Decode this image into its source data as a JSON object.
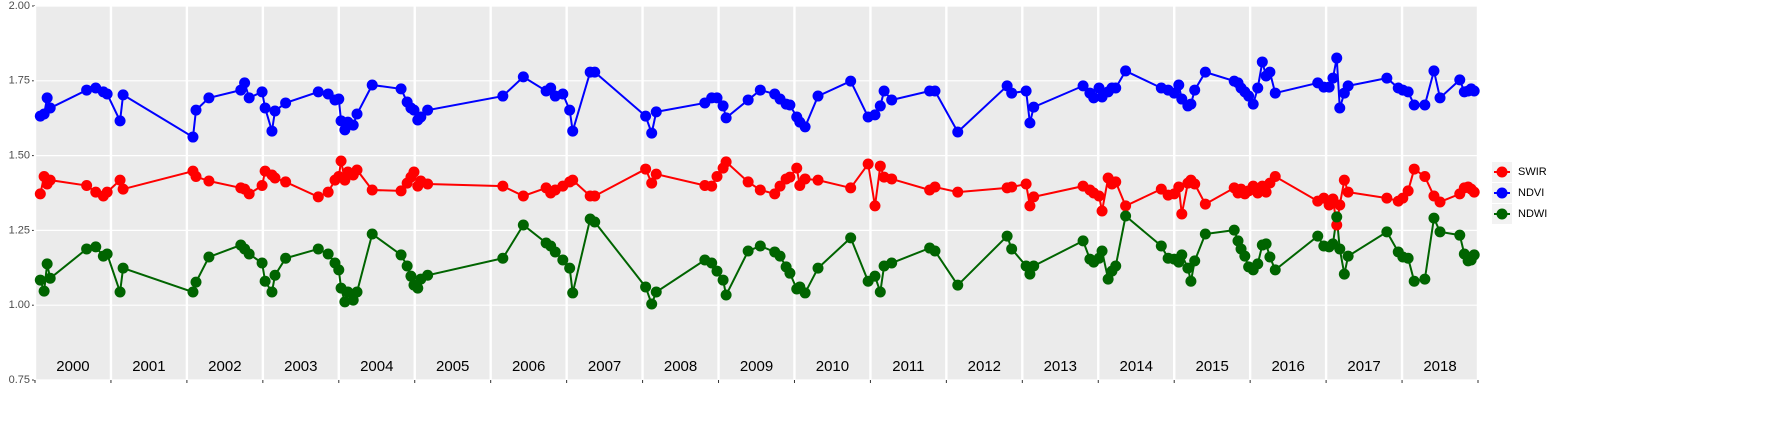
{
  "chart_data": {
    "type": "line",
    "x": [
      2000.07,
      2000.12,
      2000.16,
      2000.2,
      2000.68,
      2000.8,
      2000.9,
      2000.95,
      2001.12,
      2001.16,
      2002.08,
      2002.12,
      2002.29,
      2002.71,
      2002.76,
      2002.82,
      2002.99,
      2003.03,
      2003.12,
      2003.16,
      2003.3,
      2003.73,
      2003.86,
      2003.95,
      2004.0,
      2004.03,
      2004.08,
      2004.12,
      2004.19,
      2004.24,
      2004.44,
      2004.82,
      2004.9,
      2004.95,
      2004.99,
      2005.04,
      2005.08,
      2005.17,
      2006.16,
      2006.43,
      2006.73,
      2006.79,
      2006.85,
      2006.95,
      2007.04,
      2007.08,
      2007.31,
      2007.37,
      2008.04,
      2008.12,
      2008.18,
      2008.82,
      2008.91,
      2008.98,
      2009.06,
      2009.1,
      2009.39,
      2009.55,
      2009.74,
      2009.81,
      2009.89,
      2009.94,
      2010.03,
      2010.07,
      2010.14,
      2010.31,
      2010.74,
      2010.97,
      2011.06,
      2011.13,
      2011.18,
      2011.28,
      2011.78,
      2011.85,
      2012.15,
      2012.8,
      2012.86,
      2013.05,
      2013.1,
      2013.15,
      2013.8,
      2013.89,
      2013.94,
      2014.01,
      2014.05,
      2014.13,
      2014.18,
      2014.23,
      2014.36,
      2014.83,
      2014.92,
      2015.0,
      2015.06,
      2015.1,
      2015.18,
      2015.22,
      2015.27,
      2015.41,
      2015.79,
      2015.84,
      2015.88,
      2015.93,
      2015.98,
      2016.04,
      2016.1,
      2016.16,
      2016.21,
      2016.26,
      2016.33,
      2016.89,
      2016.97,
      2017.04,
      2017.09,
      2017.14,
      2017.18,
      2017.24,
      2017.29,
      2017.8,
      2017.95,
      2018.01,
      2018.08,
      2018.16,
      2018.3,
      2018.42,
      2018.5,
      2018.76,
      2018.82,
      2018.87,
      2018.91,
      2018.95
    ],
    "series": [
      {
        "name": "SWIR",
        "color": "#ff0000",
        "values": [
          1.372,
          1.43,
          1.405,
          1.418,
          1.4,
          1.378,
          1.365,
          1.378,
          1.418,
          1.388,
          1.448,
          1.43,
          1.415,
          1.392,
          1.388,
          1.372,
          1.4,
          1.448,
          1.435,
          1.425,
          1.412,
          1.362,
          1.378,
          1.418,
          1.43,
          1.482,
          1.418,
          1.445,
          1.435,
          1.452,
          1.385,
          1.382,
          1.408,
          1.428,
          1.445,
          1.398,
          1.415,
          1.405,
          1.398,
          1.365,
          1.392,
          1.375,
          1.385,
          1.398,
          1.412,
          1.418,
          1.365,
          1.365,
          1.455,
          1.408,
          1.438,
          1.4,
          1.398,
          1.43,
          1.458,
          1.479,
          1.412,
          1.385,
          1.372,
          1.398,
          1.422,
          1.428,
          1.458,
          1.4,
          1.422,
          1.418,
          1.392,
          1.472,
          1.332,
          1.465,
          1.428,
          1.422,
          1.385,
          1.395,
          1.378,
          1.392,
          1.395,
          1.405,
          1.332,
          1.362,
          1.398,
          1.385,
          1.375,
          1.365,
          1.315,
          1.425,
          1.405,
          1.412,
          1.332,
          1.388,
          1.368,
          1.372,
          1.395,
          1.305,
          1.408,
          1.418,
          1.405,
          1.338,
          1.392,
          1.375,
          1.388,
          1.372,
          1.382,
          1.398,
          1.375,
          1.398,
          1.378,
          1.408,
          1.43,
          1.348,
          1.358,
          1.335,
          1.355,
          1.268,
          1.335,
          1.418,
          1.378,
          1.358,
          1.348,
          1.358,
          1.382,
          1.455,
          1.43,
          1.365,
          1.345,
          1.372,
          1.392,
          1.395,
          1.388,
          1.378
        ]
      },
      {
        "name": "NDVI",
        "color": "#0000ff",
        "values": [
          1.632,
          1.639,
          1.693,
          1.659,
          1.719,
          1.726,
          1.713,
          1.706,
          1.616,
          1.703,
          1.562,
          1.652,
          1.693,
          1.719,
          1.743,
          1.693,
          1.713,
          1.659,
          1.582,
          1.649,
          1.676,
          1.713,
          1.706,
          1.686,
          1.689,
          1.616,
          1.586,
          1.612,
          1.602,
          1.639,
          1.736,
          1.723,
          1.679,
          1.659,
          1.652,
          1.619,
          1.629,
          1.652,
          1.699,
          1.763,
          1.716,
          1.726,
          1.699,
          1.706,
          1.652,
          1.582,
          1.779,
          1.779,
          1.632,
          1.575,
          1.646,
          1.676,
          1.693,
          1.693,
          1.666,
          1.626,
          1.686,
          1.719,
          1.706,
          1.689,
          1.672,
          1.669,
          1.629,
          1.612,
          1.596,
          1.699,
          1.749,
          1.629,
          1.636,
          1.666,
          1.716,
          1.686,
          1.716,
          1.716,
          1.579,
          1.733,
          1.709,
          1.716,
          1.609,
          1.662,
          1.733,
          1.709,
          1.693,
          1.726,
          1.696,
          1.713,
          1.726,
          1.726,
          1.783,
          1.726,
          1.719,
          1.709,
          1.736,
          1.689,
          1.666,
          1.672,
          1.719,
          1.779,
          1.749,
          1.743,
          1.726,
          1.713,
          1.699,
          1.672,
          1.726,
          1.813,
          1.766,
          1.779,
          1.709,
          1.743,
          1.729,
          1.729,
          1.759,
          1.826,
          1.659,
          1.709,
          1.733,
          1.759,
          1.726,
          1.719,
          1.713,
          1.669,
          1.669,
          1.783,
          1.693,
          1.753,
          1.713,
          1.716,
          1.723,
          1.716
        ]
      },
      {
        "name": "NDWI",
        "color": "#006400",
        "values": [
          1.084,
          1.047,
          1.138,
          1.09,
          1.188,
          1.195,
          1.164,
          1.171,
          1.044,
          1.124,
          1.044,
          1.077,
          1.161,
          1.201,
          1.188,
          1.171,
          1.141,
          1.08,
          1.044,
          1.1,
          1.157,
          1.188,
          1.171,
          1.141,
          1.118,
          1.057,
          1.011,
          1.044,
          1.017,
          1.044,
          1.238,
          1.168,
          1.131,
          1.097,
          1.067,
          1.057,
          1.087,
          1.1,
          1.157,
          1.268,
          1.208,
          1.198,
          1.178,
          1.151,
          1.124,
          1.041,
          1.288,
          1.278,
          1.061,
          1.004,
          1.044,
          1.151,
          1.141,
          1.114,
          1.084,
          1.034,
          1.181,
          1.198,
          1.178,
          1.164,
          1.128,
          1.107,
          1.054,
          1.061,
          1.041,
          1.124,
          1.225,
          1.08,
          1.097,
          1.044,
          1.131,
          1.141,
          1.191,
          1.181,
          1.067,
          1.231,
          1.188,
          1.131,
          1.104,
          1.131,
          1.215,
          1.154,
          1.144,
          1.157,
          1.181,
          1.087,
          1.114,
          1.131,
          1.298,
          1.198,
          1.157,
          1.154,
          1.144,
          1.168,
          1.124,
          1.08,
          1.148,
          1.238,
          1.251,
          1.215,
          1.188,
          1.164,
          1.128,
          1.118,
          1.138,
          1.201,
          1.205,
          1.161,
          1.118,
          1.231,
          1.198,
          1.195,
          1.205,
          1.295,
          1.188,
          1.104,
          1.164,
          1.245,
          1.178,
          1.161,
          1.157,
          1.08,
          1.087,
          1.291,
          1.245,
          1.234,
          1.171,
          1.148,
          1.151,
          1.168
        ]
      }
    ],
    "xlim": [
      2000,
      2019
    ],
    "xticks": [
      {
        "value": 2000.5,
        "label": "2000"
      },
      {
        "value": 2001.5,
        "label": "2001"
      },
      {
        "value": 2002.5,
        "label": "2002"
      },
      {
        "value": 2003.5,
        "label": "2003"
      },
      {
        "value": 2004.5,
        "label": "2004"
      },
      {
        "value": 2005.5,
        "label": "2005"
      },
      {
        "value": 2006.5,
        "label": "2006"
      },
      {
        "value": 2007.5,
        "label": "2007"
      },
      {
        "value": 2008.5,
        "label": "2008"
      },
      {
        "value": 2009.5,
        "label": "2009"
      },
      {
        "value": 2010.5,
        "label": "2010"
      },
      {
        "value": 2011.5,
        "label": "2011"
      },
      {
        "value": 2012.5,
        "label": "2012"
      },
      {
        "value": 2013.5,
        "label": "2013"
      },
      {
        "value": 2014.5,
        "label": "2014"
      },
      {
        "value": 2015.5,
        "label": "2015"
      },
      {
        "value": 2016.5,
        "label": "2016"
      },
      {
        "value": 2017.5,
        "label": "2017"
      },
      {
        "value": 2018.5,
        "label": "2018"
      }
    ],
    "xbreaks": [
      2000,
      2001,
      2002,
      2003,
      2004,
      2005,
      2006,
      2007,
      2008,
      2009,
      2010,
      2011,
      2012,
      2013,
      2014,
      2015,
      2016,
      2017,
      2018,
      2019
    ],
    "ylim": [
      0.75,
      2
    ],
    "yticks": [
      {
        "value": 2,
        "label": "2.00"
      },
      1.75,
      {
        "value": 1.5,
        "label": "1.50"
      },
      1.25,
      {
        "value": 1,
        "label": "1.00"
      },
      0.75
    ],
    "grid": true,
    "legend": "right"
  }
}
